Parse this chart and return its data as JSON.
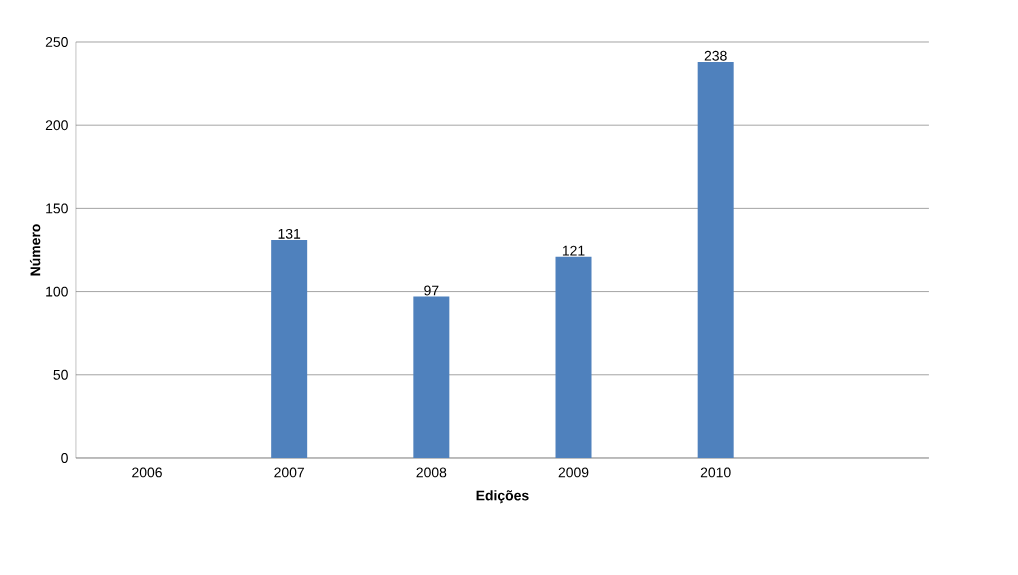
{
  "chart_data": {
    "type": "bar",
    "xlabel": "Edições",
    "ylabel": "Número",
    "categories": [
      "2006",
      "2007",
      "2008",
      "2009",
      "2010",
      null
    ],
    "values": [
      null,
      131,
      97,
      121,
      238,
      null
    ],
    "color": "#4f81bd",
    "ylim": [
      0,
      250
    ],
    "yticks": [
      0,
      50,
      100,
      150,
      200,
      250
    ],
    "grid": "y",
    "data_labels": true
  }
}
